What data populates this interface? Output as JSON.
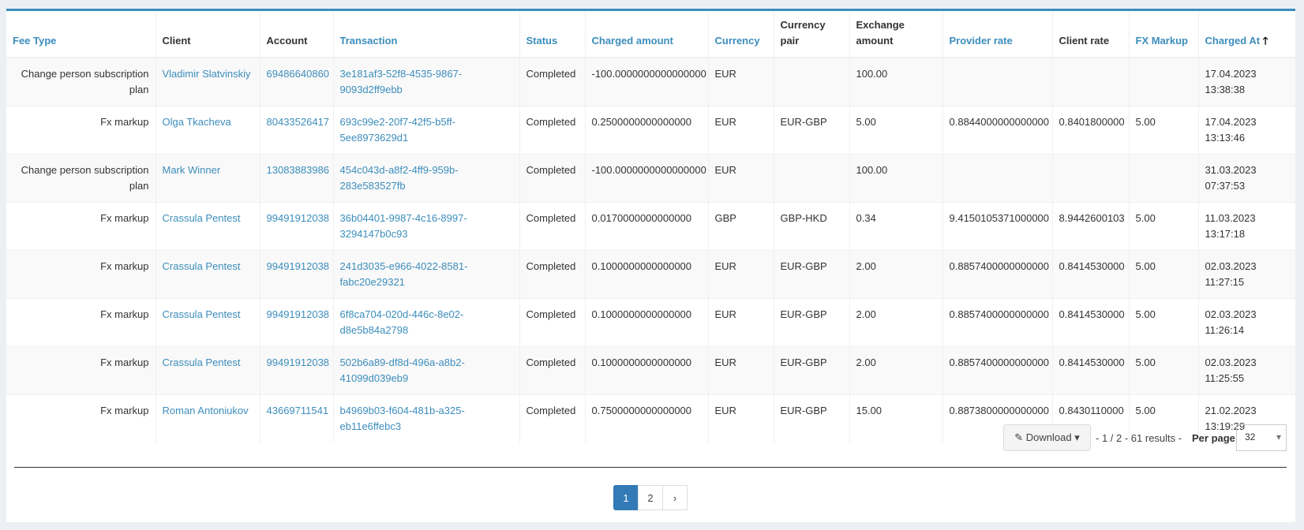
{
  "table": {
    "headers": [
      "Fee Type",
      "Client",
      "Account",
      "Transaction",
      "Status",
      "Charged amount",
      "Currency",
      "Currency pair",
      "Exchange amount",
      "Provider rate",
      "Client rate",
      "FX Markup",
      "Charged At"
    ],
    "rows": [
      [
        "Change person subscription plan",
        "Vladimir Slatvinskiy",
        "69486640860",
        "3e181af3-52f8-4535-9867-9093d2ff9ebb",
        "Completed",
        "-100.0000000000000000",
        "EUR",
        "",
        "100.00",
        "",
        "",
        "",
        "17.04.2023 13:38:38"
      ],
      [
        "Fx markup",
        "Olga Tkacheva",
        "80433526417",
        "693c99e2-20f7-42f5-b5ff-5ee8973629d1",
        "Completed",
        "0.2500000000000000",
        "EUR",
        "EUR-GBP",
        "5.00",
        "0.8844000000000000",
        "0.8401800000",
        "5.00",
        "17.04.2023 13:13:46"
      ],
      [
        "Change person subscription plan",
        "Mark Winner",
        "13083883986",
        "454c043d-a8f2-4ff9-959b-283e583527fb",
        "Completed",
        "-100.0000000000000000",
        "EUR",
        "",
        "100.00",
        "",
        "",
        "",
        "31.03.2023 07:37:53"
      ],
      [
        "Fx markup",
        "Crassula Pentest",
        "99491912038",
        "36b04401-9987-4c16-8997-3294147b0c93",
        "Completed",
        "0.0170000000000000",
        "GBP",
        "GBP-HKD",
        "0.34",
        "9.4150105371000000",
        "8.9442600103",
        "5.00",
        "11.03.2023 13:17:18"
      ],
      [
        "Fx markup",
        "Crassula Pentest",
        "99491912038",
        "241d3035-e966-4022-8581-fabc20e29321",
        "Completed",
        "0.1000000000000000",
        "EUR",
        "EUR-GBP",
        "2.00",
        "0.8857400000000000",
        "0.8414530000",
        "5.00",
        "02.03.2023 11:27:15"
      ],
      [
        "Fx markup",
        "Crassula Pentest",
        "99491912038",
        "6f8ca704-020d-446c-8e02-d8e5b84a2798",
        "Completed",
        "0.1000000000000000",
        "EUR",
        "EUR-GBP",
        "2.00",
        "0.8857400000000000",
        "0.8414530000",
        "5.00",
        "02.03.2023 11:26:14"
      ],
      [
        "Fx markup",
        "Crassula Pentest",
        "99491912038",
        "502b6a89-df8d-496a-a8b2-41099d039eb9",
        "Completed",
        "0.1000000000000000",
        "EUR",
        "EUR-GBP",
        "2.00",
        "0.8857400000000000",
        "0.8414530000",
        "5.00",
        "02.03.2023 11:25:55"
      ],
      [
        "Fx markup",
        "Roman Antoniukov",
        "43669711541",
        "b4969b03-f604-481b-a325-eb11e6ffebc3",
        "Completed",
        "0.7500000000000000",
        "EUR",
        "EUR-GBP",
        "15.00",
        "0.8873800000000000",
        "0.8430110000",
        "5.00",
        "21.02.2023 13:19:29"
      ]
    ]
  },
  "footer": {
    "download": "Download",
    "pager_info": "- 1 / 2 - 61 results -",
    "per_page_label": "Per page",
    "per_page_value": "32",
    "pages": [
      "1",
      "2",
      "›"
    ]
  }
}
